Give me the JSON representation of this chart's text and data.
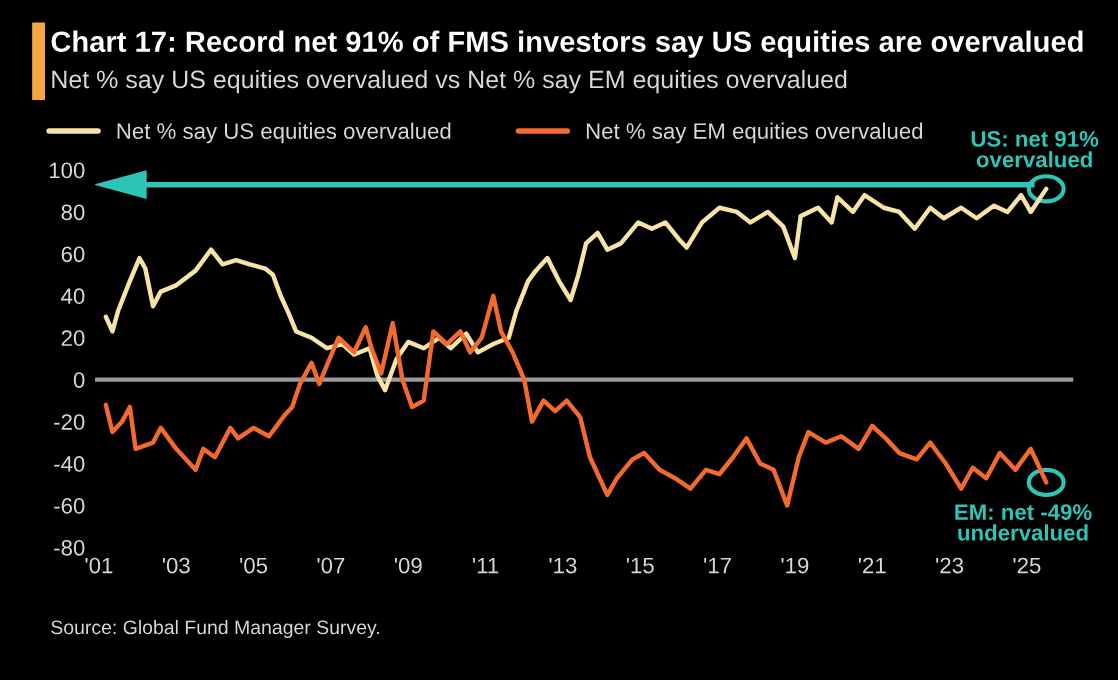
{
  "chart_data": {
    "type": "line",
    "title": "Chart 17: Record net 91% of FMS investors say US equities are overvalued",
    "subtitle": "Net % say US equities overvalued vs Net % say EM equities overvalued",
    "annotations": [
      {
        "text": "US: net 91%\novervalued",
        "x": 2025.5,
        "y": 91
      },
      {
        "text": "EM: net -49%\nundervalued",
        "x": 2025.5,
        "y": -49
      },
      "Source: Global Fund Manager Survey."
    ],
    "series": [
      {
        "name": "Net % say US equities overvalued",
        "color": "#f7e3a8",
        "x": [
          2001.18,
          2001.35,
          2001.5,
          2001.8,
          2002.05,
          2002.2,
          2002.4,
          2002.6,
          2003.0,
          2003.5,
          2003.9,
          2004.2,
          2004.55,
          2004.9,
          2005.3,
          2005.5,
          2005.7,
          2005.9,
          2006.1,
          2006.5,
          2006.9,
          2007.3,
          2007.6,
          2008.0,
          2008.2,
          2008.4,
          2008.7,
          2009.0,
          2009.4,
          2009.8,
          2010.1,
          2010.5,
          2010.8,
          2011.2,
          2011.6,
          2011.8,
          2012.1,
          2012.3,
          2012.6,
          2012.9,
          2013.2,
          2013.4,
          2013.6,
          2013.9,
          2014.15,
          2014.5,
          2014.95,
          2015.3,
          2015.65,
          2016.0,
          2016.2,
          2016.6,
          2017.05,
          2017.5,
          2017.85,
          2018.3,
          2018.7,
          2019.0,
          2019.15,
          2019.6,
          2019.95,
          2020.1,
          2020.5,
          2020.8,
          2021.3,
          2021.7,
          2022.1,
          2022.5,
          2022.85,
          2023.3,
          2023.7,
          2024.15,
          2024.5,
          2024.85,
          2025.1,
          2025.5
        ],
        "values": [
          30,
          23,
          33,
          47,
          58,
          53,
          35,
          42,
          45,
          52,
          62,
          55,
          57,
          55,
          53,
          50,
          40,
          32,
          23,
          20,
          15,
          17,
          12,
          15,
          2,
          -5,
          10,
          18,
          15,
          20,
          15,
          22,
          13,
          17,
          20,
          33,
          47,
          52,
          58,
          47,
          38,
          50,
          65,
          70,
          62,
          65,
          75,
          72,
          75,
          67,
          63,
          75,
          82,
          80,
          75,
          80,
          73,
          58,
          78,
          82,
          75,
          87,
          80,
          88,
          82,
          80,
          72,
          82,
          77,
          82,
          77,
          83,
          80,
          88,
          80,
          91
        ]
      },
      {
        "name": "Net % say EM equities overvalued",
        "color": "#f26a2e",
        "x": [
          2001.18,
          2001.35,
          2001.6,
          2001.8,
          2001.95,
          2002.4,
          2002.6,
          2003.0,
          2003.5,
          2003.7,
          2004.0,
          2004.4,
          2004.6,
          2005.0,
          2005.4,
          2005.8,
          2006.0,
          2006.2,
          2006.5,
          2006.7,
          2006.9,
          2007.2,
          2007.6,
          2007.9,
          2008.05,
          2008.3,
          2008.6,
          2008.85,
          2009.1,
          2009.4,
          2009.65,
          2010.0,
          2010.35,
          2010.6,
          2010.9,
          2011.2,
          2011.4,
          2011.7,
          2012.0,
          2012.2,
          2012.5,
          2012.8,
          2013.1,
          2013.45,
          2013.7,
          2014.15,
          2014.4,
          2014.8,
          2015.1,
          2015.5,
          2015.9,
          2016.3,
          2016.7,
          2017.05,
          2017.4,
          2017.75,
          2018.1,
          2018.45,
          2018.8,
          2019.1,
          2019.35,
          2019.8,
          2020.2,
          2020.65,
          2021.0,
          2021.35,
          2021.7,
          2022.15,
          2022.5,
          2022.9,
          2023.3,
          2023.6,
          2023.95,
          2024.3,
          2024.7,
          2025.1,
          2025.5
        ],
        "values": [
          -12,
          -25,
          -20,
          -13,
          -33,
          -30,
          -23,
          -33,
          -43,
          -33,
          -37,
          -23,
          -28,
          -23,
          -27,
          -17,
          -13,
          -2,
          8,
          -2,
          7,
          20,
          13,
          25,
          15,
          3,
          27,
          0,
          -13,
          -10,
          23,
          17,
          23,
          13,
          20,
          40,
          23,
          13,
          0,
          -20,
          -10,
          -15,
          -10,
          -18,
          -37,
          -55,
          -47,
          -38,
          -35,
          -43,
          -47,
          -52,
          -43,
          -45,
          -37,
          -28,
          -40,
          -43,
          -60,
          -37,
          -25,
          -30,
          -27,
          -33,
          -22,
          -28,
          -35,
          -38,
          -30,
          -40,
          -52,
          -42,
          -47,
          -35,
          -43,
          -33,
          -49
        ]
      }
    ],
    "xlim": [
      2000.9,
      2026.2
    ],
    "xticks": [
      {
        "value": 2001,
        "label": "'01"
      },
      {
        "value": 2003,
        "label": "'03"
      },
      {
        "value": 2005,
        "label": "'05"
      },
      {
        "value": 2007,
        "label": "'07"
      },
      {
        "value": 2009,
        "label": "'09"
      },
      {
        "value": 2011,
        "label": "'11"
      },
      {
        "value": 2013,
        "label": "'13"
      },
      {
        "value": 2015,
        "label": "'15"
      },
      {
        "value": 2017,
        "label": "'17"
      },
      {
        "value": 2019,
        "label": "'19"
      },
      {
        "value": 2021,
        "label": "'21"
      },
      {
        "value": 2023,
        "label": "'23"
      },
      {
        "value": 2025,
        "label": "'25"
      }
    ],
    "ylim": [
      -80,
      100
    ],
    "yticks": [
      -80,
      -60,
      -40,
      -20,
      0,
      20,
      40,
      60,
      80,
      100
    ],
    "ref_lines": [
      {
        "axis": "y",
        "value": 0,
        "color": "#9a9a9a"
      },
      {
        "axis": "y",
        "value": 93,
        "color": "#2ec4b6"
      }
    ],
    "grid": false,
    "legend": "top",
    "line_style": "solid",
    "marker": "none"
  }
}
